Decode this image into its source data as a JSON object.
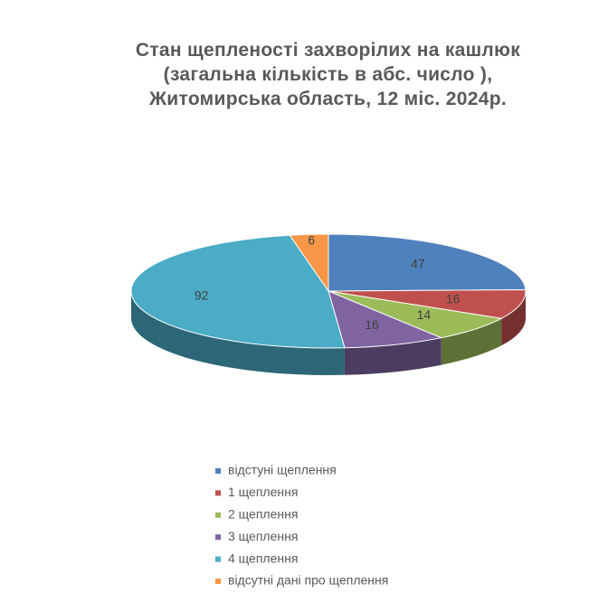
{
  "chart_data": {
    "type": "pie3d",
    "title": "Стан щепленості захворілих на кашлюк (загальна кількість в абс. число ), Житомирська область, 12 міс. 2024р.",
    "categories": [
      "відстуні щеплення",
      "1 щеплення",
      "2 щеплення",
      "3 щеплення",
      "4 щеплення",
      "відсутні дані про щеплення"
    ],
    "values": [
      47,
      16,
      14,
      16,
      92,
      6
    ],
    "colors": [
      "#4f81bd",
      "#c0504d",
      "#9bbb59",
      "#8064a2",
      "#4bacc6",
      "#f79646"
    ],
    "legend": "bottom"
  }
}
